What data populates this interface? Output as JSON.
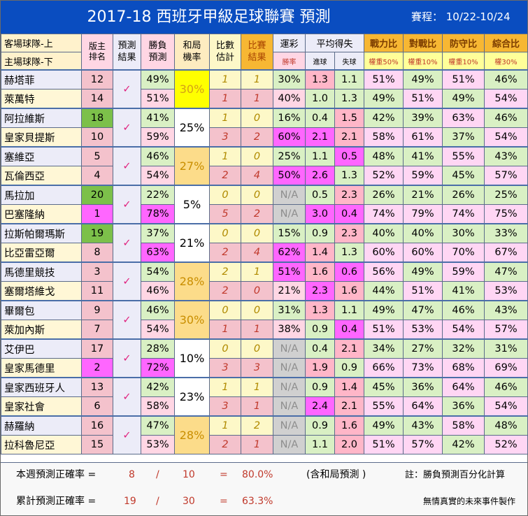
{
  "title": "2017-18 西班牙甲級足球聯賽  預測",
  "schedule": "賽程： 10/22-10/24",
  "headers": {
    "team_top": "客場球隊-上",
    "team_bottom": "主場球隊-下",
    "rank_1": "版主",
    "rank_2": "排名",
    "pred_1": "預測",
    "pred_2": "結果",
    "win_1": "勝負",
    "win_2": "預測",
    "draw_1": "和局",
    "draw_2": "機率",
    "score_1": "比數",
    "score_2": "估計",
    "result_1": "比賽",
    "result_2": "結果",
    "lottery": "運彩",
    "lottery_sub": "勝率",
    "avg": "平均得失",
    "avg_in": "進球",
    "avg_out": "失球",
    "power": "戰力比",
    "power_w": "權重50%",
    "h2h": "對戰比",
    "h2h_w": "權重10%",
    "def": "防守比",
    "def_w": "權重10%",
    "total": "綜合比",
    "total_w": "權30%"
  },
  "check": "✓",
  "colors": {
    "header_blue": "#0a4dc0",
    "rank_pink": "#f4c2cc",
    "rank_green_dark": "#7cc04a",
    "pink_strong": "#ff66ff",
    "light_pink": "#ffd6e4"
  },
  "matches": [
    {
      "draw": "30%",
      "draw_bg": "#ffff00",
      "draw_color": "#d4a017",
      "away": {
        "team": "赫塔菲",
        "rank": "12",
        "win": "49%",
        "est": "1",
        "res": "1",
        "lot": "30%",
        "gin": "1.3",
        "gout": "1.1",
        "p": "51%",
        "h": "49%",
        "d": "51%",
        "t": "46%"
      },
      "home": {
        "team": "萊萬特",
        "rank": "14",
        "win": "51%",
        "est": "1",
        "res": "1",
        "lot": "40%",
        "gin": "1.0",
        "gout": "1.3",
        "p": "49%",
        "h": "51%",
        "d": "49%",
        "t": "54%"
      }
    },
    {
      "draw": "25%",
      "draw_bg": "#ffffff",
      "draw_color": "#000000",
      "away": {
        "team": "阿拉維斯",
        "rank": "18",
        "win": "41%",
        "est": "1",
        "res": "0",
        "lot": "16%",
        "gin": "0.4",
        "gout": "1.5",
        "p": "42%",
        "h": "39%",
        "d": "63%",
        "t": "46%"
      },
      "home": {
        "team": "皇家貝提斯",
        "rank": "10",
        "win": "59%",
        "est": "3",
        "res": "2",
        "lot": "60%",
        "gin": "2.1",
        "gout": "2.1",
        "p": "58%",
        "h": "61%",
        "d": "37%",
        "t": "54%"
      }
    },
    {
      "draw": "27%",
      "draw_bg": "#fcdc8a",
      "draw_color": "#c98e00",
      "away": {
        "team": "塞維亞",
        "rank": "5",
        "win": "46%",
        "est": "1",
        "res": "0",
        "lot": "25%",
        "gin": "1.1",
        "gout": "0.5",
        "p": "48%",
        "h": "41%",
        "d": "55%",
        "t": "43%"
      },
      "home": {
        "team": "瓦倫西亞",
        "rank": "4",
        "win": "54%",
        "est": "2",
        "res": "4",
        "lot": "50%",
        "gin": "2.6",
        "gout": "1.3",
        "p": "52%",
        "h": "59%",
        "d": "45%",
        "t": "57%"
      }
    },
    {
      "draw": "5%",
      "draw_bg": "#ffffff",
      "draw_color": "#000000",
      "away": {
        "team": "馬拉加",
        "rank": "20",
        "win": "22%",
        "est": "0",
        "res": "0",
        "lot": "N/A",
        "gin": "0.5",
        "gout": "2.3",
        "p": "26%",
        "h": "21%",
        "d": "26%",
        "t": "25%"
      },
      "home": {
        "team": "巴塞隆納",
        "rank": "1",
        "win": "78%",
        "est": "5",
        "res": "2",
        "lot": "N/A",
        "gin": "3.0",
        "gout": "0.4",
        "p": "74%",
        "h": "79%",
        "d": "74%",
        "t": "75%"
      }
    },
    {
      "draw": "21%",
      "draw_bg": "#ffffff",
      "draw_color": "#000000",
      "away": {
        "team": "拉斯帕爾瑪斯",
        "rank": "19",
        "win": "37%",
        "est": "0",
        "res": "0",
        "lot": "15%",
        "gin": "0.9",
        "gout": "2.3",
        "p": "40%",
        "h": "40%",
        "d": "30%",
        "t": "33%"
      },
      "home": {
        "team": "比亞雷亞爾",
        "rank": "8",
        "win": "63%",
        "est": "2",
        "res": "4",
        "lot": "62%",
        "gin": "1.4",
        "gout": "1.3",
        "p": "60%",
        "h": "60%",
        "d": "70%",
        "t": "67%"
      }
    },
    {
      "draw": "28%",
      "draw_bg": "#fcdc8a",
      "draw_color": "#c98e00",
      "away": {
        "team": "馬德里競技",
        "rank": "3",
        "win": "54%",
        "est": "2",
        "res": "1",
        "lot": "51%",
        "gin": "1.6",
        "gout": "0.6",
        "p": "56%",
        "h": "49%",
        "d": "59%",
        "t": "47%"
      },
      "home": {
        "team": "塞爾塔維戈",
        "rank": "11",
        "win": "46%",
        "est": "2",
        "res": "0",
        "lot": "21%",
        "gin": "2.3",
        "gout": "1.6",
        "p": "44%",
        "h": "51%",
        "d": "41%",
        "t": "53%"
      }
    },
    {
      "draw": "30%",
      "draw_bg": "#fcdc8a",
      "draw_color": "#c98e00",
      "away": {
        "team": "畢爾包",
        "rank": "9",
        "win": "46%",
        "est": "0",
        "res": "0",
        "lot": "31%",
        "gin": "1.3",
        "gout": "1.1",
        "p": "49%",
        "h": "47%",
        "d": "46%",
        "t": "43%"
      },
      "home": {
        "team": "萊加內斯",
        "rank": "7",
        "win": "54%",
        "est": "1",
        "res": "1",
        "lot": "38%",
        "gin": "0.9",
        "gout": "0.4",
        "p": "51%",
        "h": "53%",
        "d": "54%",
        "t": "57%"
      }
    },
    {
      "draw": "10%",
      "draw_bg": "#ffffff",
      "draw_color": "#000000",
      "away": {
        "team": "艾伊巴",
        "rank": "17",
        "win": "28%",
        "est": "0",
        "res": "0",
        "lot": "N/A",
        "gin": "0.4",
        "gout": "2.1",
        "p": "34%",
        "h": "27%",
        "d": "32%",
        "t": "31%"
      },
      "home": {
        "team": "皇家馬德里",
        "rank": "2",
        "win": "72%",
        "est": "3",
        "res": "3",
        "lot": "N/A",
        "gin": "1.9",
        "gout": "0.9",
        "p": "66%",
        "h": "73%",
        "d": "68%",
        "t": "69%"
      }
    },
    {
      "draw": "23%",
      "draw_bg": "#ffffff",
      "draw_color": "#000000",
      "away": {
        "team": "皇家西班牙人",
        "rank": "13",
        "win": "42%",
        "est": "1",
        "res": "1",
        "lot": "N/A",
        "gin": "0.9",
        "gout": "1.4",
        "p": "45%",
        "h": "36%",
        "d": "64%",
        "t": "46%"
      },
      "home": {
        "team": "皇家社會",
        "rank": "6",
        "win": "58%",
        "est": "3",
        "res": "1",
        "lot": "N/A",
        "gin": "2.4",
        "gout": "2.1",
        "p": "55%",
        "h": "64%",
        "d": "36%",
        "t": "54%"
      }
    },
    {
      "draw": "28%",
      "draw_bg": "#fcdc8a",
      "draw_color": "#c98e00",
      "away": {
        "team": "赫羅納",
        "rank": "16",
        "win": "47%",
        "est": "1",
        "res": "2",
        "lot": "N/A",
        "gin": "0.9",
        "gout": "1.6",
        "p": "49%",
        "h": "43%",
        "d": "58%",
        "t": "48%"
      },
      "home": {
        "team": "拉科魯尼亞",
        "rank": "15",
        "win": "53%",
        "est": "2",
        "res": "1",
        "lot": "N/A",
        "gin": "1.1",
        "gout": "2.0",
        "p": "51%",
        "h": "57%",
        "d": "42%",
        "t": "52%"
      }
    }
  ],
  "footer": {
    "weekly_label": "本週預測正確率 =",
    "weekly_correct": "8",
    "weekly_slash": "/",
    "weekly_total": "10",
    "weekly_eq": "=",
    "weekly_rate": "80.0%",
    "weekly_note": "(含和局預測 )",
    "note": "註：勝負預測百分化計算",
    "cum_label": "累計預測正確率 =",
    "cum_correct": "19",
    "cum_slash": "/",
    "cum_total": "30",
    "cum_eq": "=",
    "cum_rate": "63.3%",
    "credit": "無情真實的未來事件製作"
  }
}
